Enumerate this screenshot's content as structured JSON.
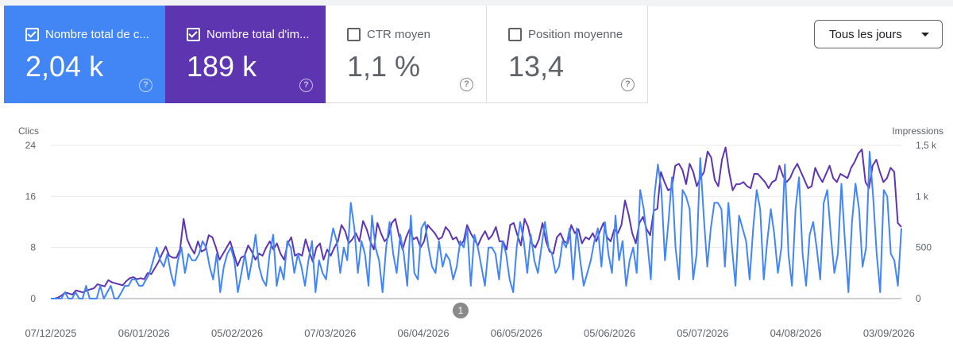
{
  "cards": [
    {
      "label": "Nombre total de c...",
      "value": "2,04 k",
      "checked": true,
      "style": "active-blue",
      "color": "#4285f4"
    },
    {
      "label": "Nombre total d'im...",
      "value": "189 k",
      "checked": true,
      "style": "active-purple",
      "color": "#5e35b1"
    },
    {
      "label": "CTR moyen",
      "value": "1,1 %",
      "checked": false,
      "style": "inactive"
    },
    {
      "label": "Position moyenne",
      "value": "13,4",
      "checked": false,
      "style": "inactive"
    }
  ],
  "help_glyph": "?",
  "dropdown": {
    "selected": "Tous les jours"
  },
  "annotation_marker": "1",
  "chart_data": {
    "type": "line",
    "ylabel_left": "Clics",
    "ylabel_right": "Impressions",
    "yticks_left": [
      "0",
      "8",
      "16",
      "24"
    ],
    "yticks_right": [
      "0",
      "500",
      "1 k",
      "1,5 k"
    ],
    "ylim_left": [
      0,
      24
    ],
    "ylim_right": [
      0,
      1500
    ],
    "x_tick_labels": [
      "07/12/2025",
      "06/01/2026",
      "05/02/2026",
      "07/03/2026",
      "06/04/2026",
      "06/05/2026",
      "05/06/2026",
      "05/07/2026",
      "04/08/2026",
      "03/09/2026"
    ],
    "x_start": "2025-12-07",
    "x_end": "2026-09-07",
    "grid": true,
    "series": [
      {
        "name": "Clics",
        "axis": "left",
        "color": "#4285f4",
        "values": [
          0,
          0,
          0,
          0,
          1,
          0,
          0,
          1,
          0,
          0,
          2,
          0,
          0,
          0,
          2,
          0,
          1,
          2,
          0,
          0,
          1,
          2,
          2,
          3,
          3,
          2,
          2,
          3,
          4,
          6,
          8,
          6,
          5,
          7,
          4,
          2,
          6,
          8,
          4,
          7,
          6,
          6,
          7,
          9,
          8,
          5,
          3,
          7,
          1,
          5,
          7,
          8,
          6,
          1,
          4,
          7,
          3,
          6,
          10,
          5,
          3,
          2,
          7,
          10,
          2,
          5,
          3,
          9,
          8,
          4,
          7,
          5,
          2,
          6,
          9,
          1,
          6,
          4,
          3,
          8,
          11,
          9,
          4,
          8,
          6,
          15,
          11,
          4,
          9,
          7,
          2,
          13,
          8,
          6,
          1,
          8,
          12,
          7,
          4,
          10,
          7,
          2,
          13,
          4,
          3,
          11,
          12,
          8,
          5,
          4,
          9,
          5,
          7,
          6,
          3,
          5,
          9,
          8,
          11,
          2,
          10,
          8,
          5,
          2,
          8,
          8,
          7,
          3,
          9,
          7,
          3,
          1,
          8,
          12,
          9,
          4,
          10,
          6,
          4,
          8,
          12,
          8,
          7,
          4,
          5,
          9,
          8,
          11,
          3,
          11,
          6,
          2,
          4,
          6,
          9,
          11,
          5,
          12,
          7,
          4,
          13,
          6,
          9,
          2,
          6,
          8,
          4,
          17,
          14,
          9,
          3,
          16,
          21,
          17,
          6,
          12,
          19,
          8,
          3,
          17,
          16,
          14,
          3,
          7,
          22,
          13,
          5,
          11,
          15,
          15,
          14,
          5,
          15,
          8,
          2,
          13,
          11,
          9,
          3,
          11,
          17,
          14,
          3,
          9,
          14,
          10,
          4,
          8,
          21,
          7,
          2,
          14,
          19,
          7,
          2,
          10,
          12,
          8,
          3,
          15,
          17,
          10,
          4,
          7,
          18,
          9,
          1,
          12,
          18,
          14,
          5,
          8,
          23,
          16,
          7,
          1,
          17,
          16,
          7,
          6,
          2,
          11
        ]
      },
      {
        "name": "Impressions",
        "axis": "right",
        "color": "#5e35b1",
        "values": [
          0,
          0,
          10,
          30,
          60,
          50,
          40,
          80,
          70,
          60,
          80,
          90,
          100,
          140,
          130,
          120,
          180,
          160,
          150,
          140,
          130,
          170,
          200,
          210,
          190,
          200,
          190,
          250,
          240,
          300,
          360,
          440,
          510,
          420,
          400,
          400,
          480,
          780,
          580,
          500,
          440,
          560,
          460,
          480,
          620,
          600,
          500,
          380,
          440,
          500,
          560,
          440,
          320,
          400,
          420,
          520,
          460,
          380,
          440,
          420,
          500,
          560,
          480,
          540,
          440,
          380,
          540,
          600,
          420,
          440,
          420,
          580,
          460,
          360,
          500,
          540,
          380,
          480,
          420,
          500,
          560,
          720,
          660,
          540,
          580,
          640,
          560,
          760,
          680,
          560,
          480,
          740,
          640,
          560,
          600,
          740,
          780,
          620,
          480,
          600,
          680,
          580,
          600,
          500,
          560,
          720,
          680,
          640,
          580,
          600,
          700,
          660,
          580,
          600,
          520,
          560,
          720,
          640,
          580,
          520,
          600,
          660,
          580,
          620,
          700,
          560,
          560,
          480,
          720,
          740,
          620,
          520,
          780,
          700,
          540,
          500,
          580,
          740,
          560,
          460,
          440,
          600,
          640,
          560,
          540,
          720,
          640,
          680,
          540,
          600,
          580,
          640,
          560,
          660,
          740,
          600,
          560,
          680,
          640,
          720,
          960,
          820,
          640,
          540,
          740,
          800,
          680,
          620,
          860,
          880,
          1240,
          1140,
          1060,
          1080,
          1300,
          1320,
          1260,
          1120,
          1320,
          1240,
          1100,
          1180,
          1240,
          1440,
          1380,
          1160,
          1100,
          1360,
          1480,
          1240,
          1060,
          1120,
          1120,
          1140,
          1100,
          1080,
          1220,
          1220,
          1180,
          1140,
          1080,
          1140,
          1160,
          1300,
          1200,
          1140,
          1180,
          1260,
          1320,
          1240,
          1160,
          1080,
          1100,
          1280,
          1200,
          1140,
          1220,
          1300,
          1180,
          1140,
          1220,
          1200,
          1180,
          1280,
          1340,
          1420,
          1460,
          1140,
          1080,
          1300,
          1360,
          1240,
          1140,
          1180,
          1280,
          1240,
          740,
          700
        ]
      }
    ]
  }
}
